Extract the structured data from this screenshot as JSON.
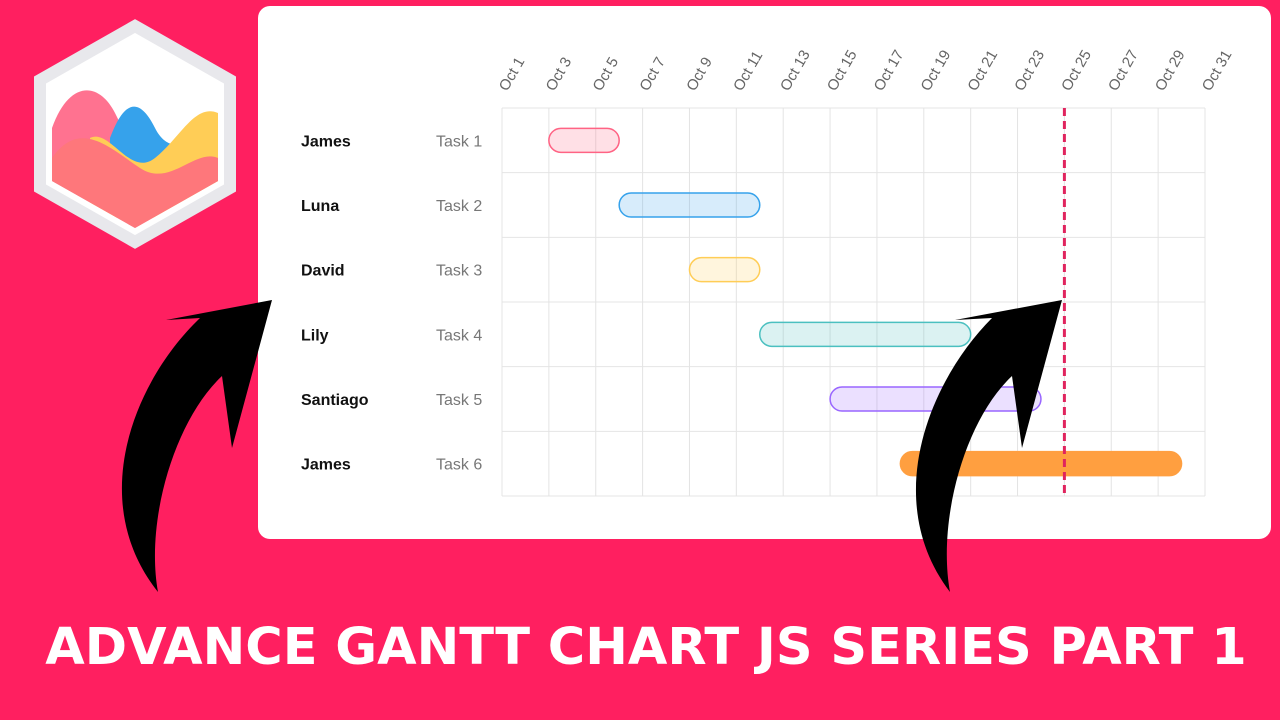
{
  "headline": "ADVANCE GANTT CHART JS SERIES PART 1",
  "logo": {
    "icon": "chartjs-hexagon-logo",
    "colors": {
      "hex": "#e8e8ec",
      "pink": "#ff6384",
      "blue": "#36a2eb",
      "yellow": "#ffcd56",
      "coral": "#fe777b"
    }
  },
  "arrows": {
    "icon": "curved-arrow-icon",
    "color": "#000000"
  },
  "chart_data": {
    "type": "gantt",
    "x_ticks": [
      "Oct 1",
      "Oct 3",
      "Oct 5",
      "Oct 7",
      "Oct 9",
      "Oct 11",
      "Oct 13",
      "Oct 15",
      "Oct 17",
      "Oct 19",
      "Oct 21",
      "Oct 23",
      "Oct 25",
      "Oct 27",
      "Oct 29",
      "Oct 31"
    ],
    "x_range": [
      "2022-10-01",
      "2022-10-31"
    ],
    "grid": true,
    "today_marker": {
      "date": "2022-10-25",
      "color": "#e0245e",
      "style": "dashed"
    },
    "rows": [
      {
        "name": "James",
        "task": "Task 1",
        "start": "2022-10-03",
        "end": "2022-10-06",
        "color": "#ff6384",
        "fill": "rgba(255,99,132,0.2)"
      },
      {
        "name": "Luna",
        "task": "Task 2",
        "start": "2022-10-06",
        "end": "2022-10-12",
        "color": "#36a2eb",
        "fill": "rgba(54,162,235,0.2)"
      },
      {
        "name": "David",
        "task": "Task 3",
        "start": "2022-10-09",
        "end": "2022-10-12",
        "color": "#ffcd56",
        "fill": "rgba(255,205,86,0.2)"
      },
      {
        "name": "Lily",
        "task": "Task 4",
        "start": "2022-10-12",
        "end": "2022-10-21",
        "color": "#4bc0c0",
        "fill": "rgba(75,192,192,0.2)"
      },
      {
        "name": "Santiago",
        "task": "Task 5",
        "start": "2022-10-15",
        "end": "2022-10-24",
        "color": "#9966ff",
        "fill": "rgba(153,102,255,0.2)"
      },
      {
        "name": "James",
        "task": "Task 6",
        "start": "2022-10-18",
        "end": "2022-10-30",
        "color": "#ff9f40",
        "fill": "#ff9f40"
      }
    ]
  }
}
